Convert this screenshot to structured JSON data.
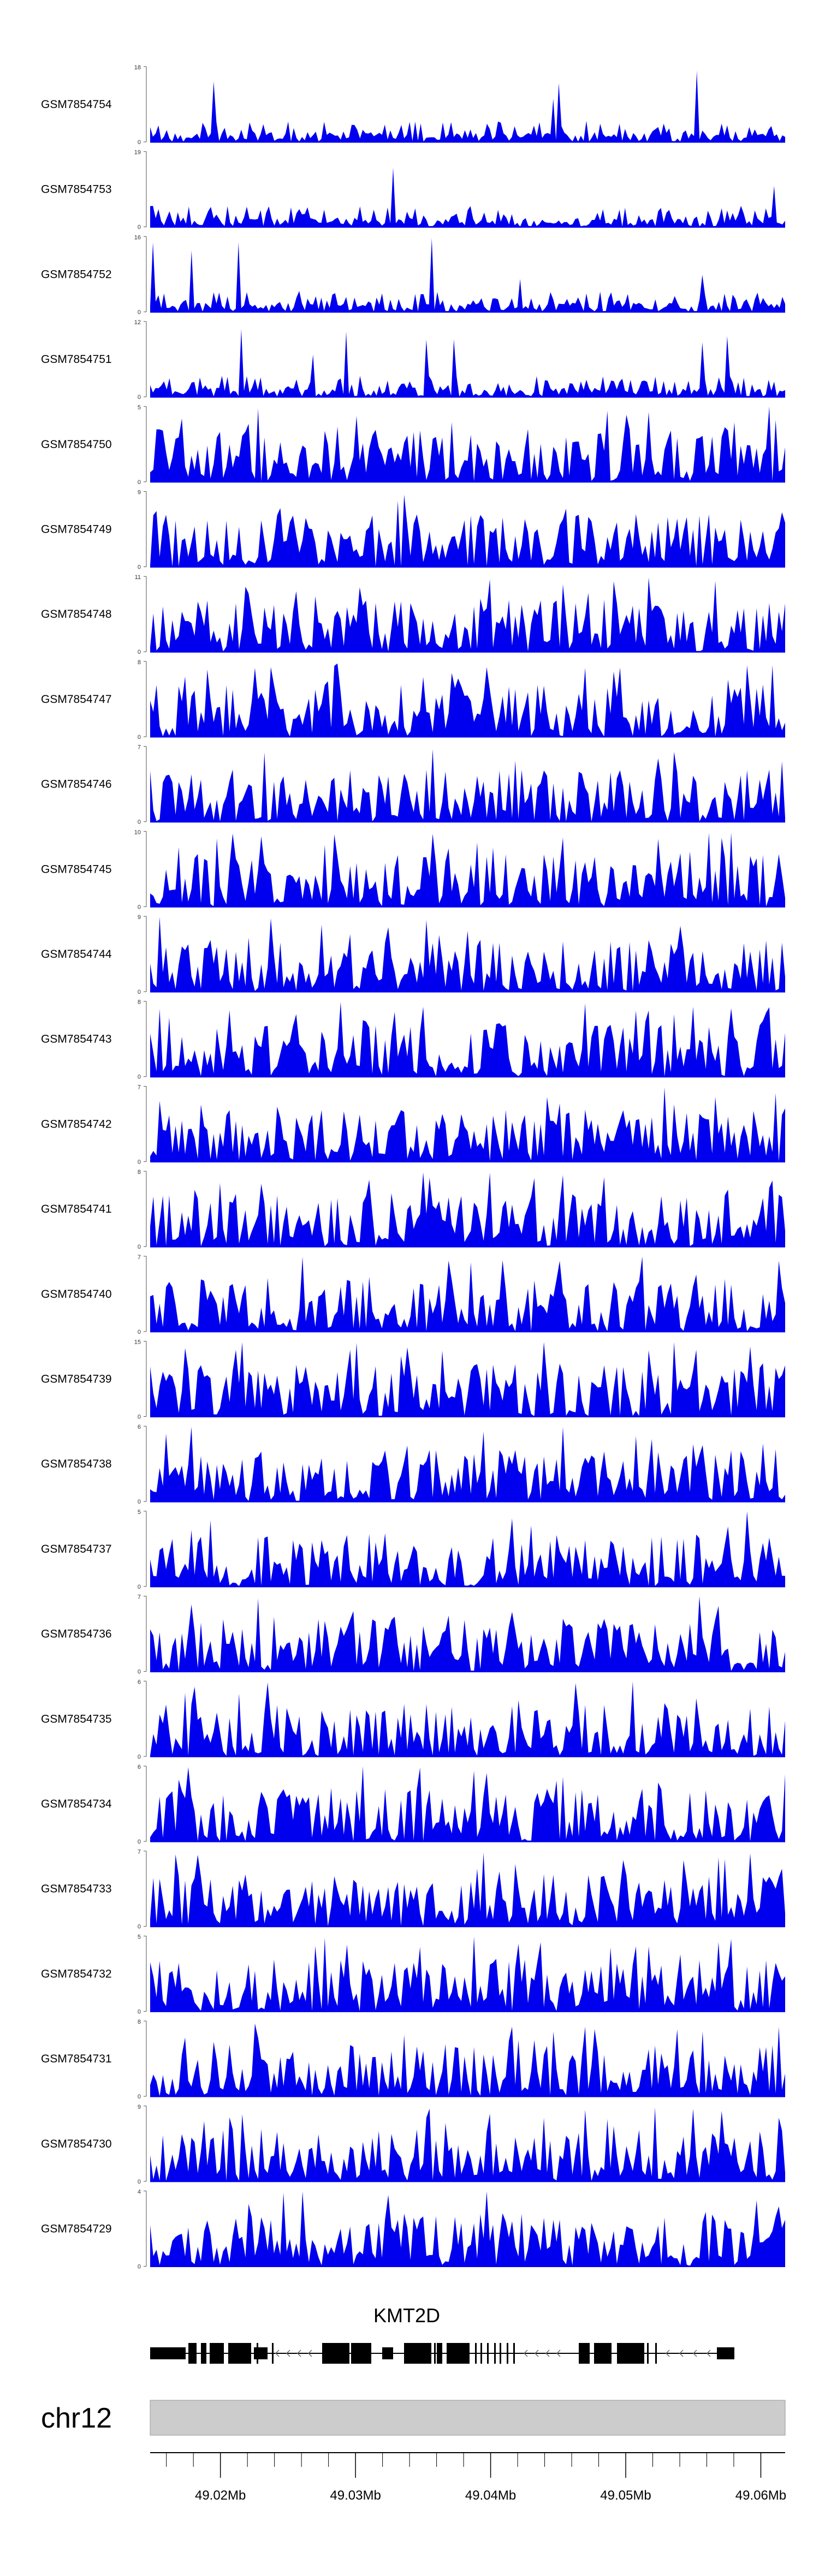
{
  "chart_data": {
    "type": "area",
    "color": "#0000ee",
    "tracks": [
      {
        "name": "GSM7854754",
        "ymax": "18",
        "ymin": "0"
      },
      {
        "name": "GSM7854753",
        "ymax": "19",
        "ymin": "0"
      },
      {
        "name": "GSM7854752",
        "ymax": "16",
        "ymin": "0"
      },
      {
        "name": "GSM7854751",
        "ymax": "12",
        "ymin": "0"
      },
      {
        "name": "GSM7854750",
        "ymax": "5",
        "ymin": "0"
      },
      {
        "name": "GSM7854749",
        "ymax": "9",
        "ymin": "0"
      },
      {
        "name": "GSM7854748",
        "ymax": "11",
        "ymin": "0"
      },
      {
        "name": "GSM7854747",
        "ymax": "8",
        "ymin": "0"
      },
      {
        "name": "GSM7854746",
        "ymax": "7",
        "ymin": "0"
      },
      {
        "name": "GSM7854745",
        "ymax": "10",
        "ymin": "0"
      },
      {
        "name": "GSM7854744",
        "ymax": "9",
        "ymin": "0"
      },
      {
        "name": "GSM7854743",
        "ymax": "8",
        "ymin": "0"
      },
      {
        "name": "GSM7854742",
        "ymax": "7",
        "ymin": "0"
      },
      {
        "name": "GSM7854741",
        "ymax": "8",
        "ymin": "0"
      },
      {
        "name": "GSM7854740",
        "ymax": "7",
        "ymin": "0"
      },
      {
        "name": "GSM7854739",
        "ymax": "15",
        "ymin": "0"
      },
      {
        "name": "GSM7854738",
        "ymax": "6",
        "ymin": "0"
      },
      {
        "name": "GSM7854737",
        "ymax": "5",
        "ymin": "0"
      },
      {
        "name": "GSM7854736",
        "ymax": "7",
        "ymin": "0"
      },
      {
        "name": "GSM7854735",
        "ymax": "6",
        "ymin": "0"
      },
      {
        "name": "GSM7854734",
        "ymax": "6",
        "ymin": "0"
      },
      {
        "name": "GSM7854733",
        "ymax": "7",
        "ymin": "0"
      },
      {
        "name": "GSM7854732",
        "ymax": "5",
        "ymin": "0"
      },
      {
        "name": "GSM7854731",
        "ymax": "8",
        "ymin": "0"
      },
      {
        "name": "GSM7854730",
        "ymax": "9",
        "ymin": "0"
      },
      {
        "name": "GSM7854729",
        "ymax": "4",
        "ymin": "0"
      }
    ],
    "gene": {
      "label": "KMT2D"
    },
    "chromosome": {
      "label": "chr12"
    },
    "x_axis": {
      "range_mb": [
        49.0148,
        49.0618
      ],
      "tick_labels": [
        "49.02Mb",
        "49.03Mb",
        "49.04Mb",
        "49.05Mb",
        "49.06Mb"
      ],
      "tick_values_mb": [
        49.02,
        49.03,
        49.04,
        49.05,
        49.06
      ],
      "minor_tick_step_mb": 0.002
    }
  }
}
